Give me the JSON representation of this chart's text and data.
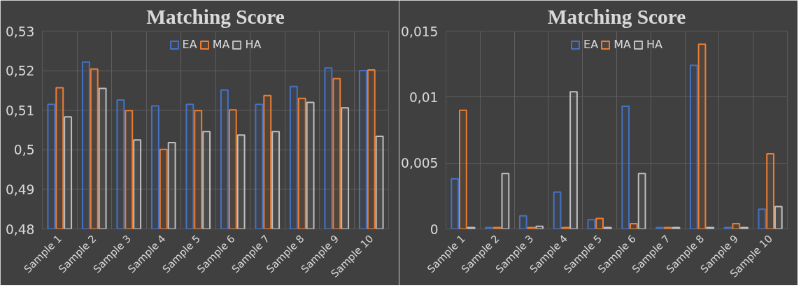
{
  "chart_data": [
    {
      "type": "bar",
      "title": "Matching Score",
      "categories": [
        "Sample 1",
        "Sample 2",
        "Sample 3",
        "Sample 4",
        "Sample 5",
        "Sample 6",
        "Sample 7",
        "Sample 8",
        "Sample 9",
        "Sample 10"
      ],
      "series": [
        {
          "name": "EA",
          "color": "#4472c4",
          "values": [
            0.5115,
            0.5222,
            0.5126,
            0.5111,
            0.5115,
            0.5151,
            0.5115,
            0.516,
            0.5207,
            0.52
          ]
        },
        {
          "name": "MA",
          "color": "#ed7d31",
          "values": [
            0.5157,
            0.5204,
            0.5099,
            0.5001,
            0.5099,
            0.5101,
            0.5137,
            0.513,
            0.518,
            0.5202
          ]
        },
        {
          "name": "HA",
          "color": "#bfbfbf",
          "values": [
            0.5083,
            0.5155,
            0.5025,
            0.5018,
            0.5046,
            0.5037,
            0.5046,
            0.512,
            0.5106,
            0.5034
          ]
        }
      ],
      "ylim": [
        0.48,
        0.53
      ],
      "yticks": [
        {
          "value": 0.48,
          "label": "0,48"
        },
        {
          "value": 0.49,
          "label": "0,49"
        },
        {
          "value": 0.5,
          "label": "0,5"
        },
        {
          "value": 0.51,
          "label": "0,51"
        },
        {
          "value": 0.52,
          "label": "0,52"
        },
        {
          "value": 0.53,
          "label": "0,53"
        }
      ],
      "grid": true,
      "legend": "top"
    },
    {
      "type": "bar",
      "title": "Matching Score",
      "categories": [
        "Sample 1",
        "Sample 2",
        "Sample 3",
        "Sample 4",
        "Sample 5",
        "Sample 6",
        "Sample 7",
        "Sample 8",
        "Sample 9",
        "Sample 10"
      ],
      "series": [
        {
          "name": "EA",
          "color": "#4472c4",
          "values": [
            0.0038,
            0.0001,
            0.001,
            0.0028,
            0.0007,
            0.0093,
            0.0001,
            0.0124,
            0.0001,
            0.0015
          ]
        },
        {
          "name": "MA",
          "color": "#ed7d31",
          "values": [
            0.009,
            0.0001,
            0.0001,
            0.0001,
            0.0008,
            0.0004,
            0.0001,
            0.014,
            0.0004,
            0.0057
          ]
        },
        {
          "name": "HA",
          "color": "#bfbfbf",
          "values": [
            0.0001,
            0.0042,
            0.0002,
            0.0104,
            0.0001,
            0.0042,
            0.0001,
            0.0001,
            0.0001,
            0.0017
          ]
        }
      ],
      "ylim": [
        0,
        0.015
      ],
      "yticks": [
        {
          "value": 0,
          "label": "0"
        },
        {
          "value": 0.005,
          "label": "0,005"
        },
        {
          "value": 0.01,
          "label": "0,01"
        },
        {
          "value": 0.015,
          "label": "0,015"
        }
      ],
      "grid": true,
      "legend": "top"
    }
  ]
}
